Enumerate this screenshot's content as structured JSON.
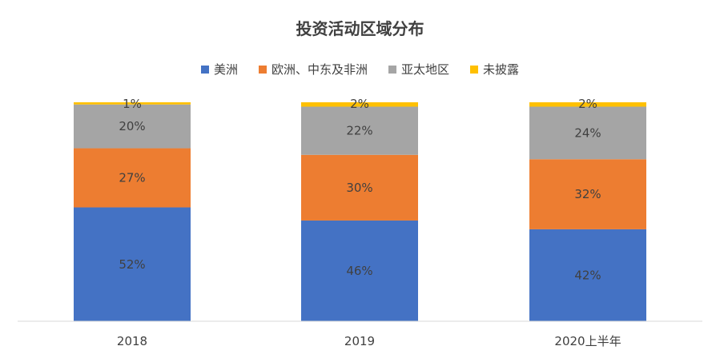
{
  "chart_data": {
    "type": "bar",
    "stacked": true,
    "title": "投资活动区域分布",
    "categories": [
      "2018",
      "2019",
      "2020上半年"
    ],
    "series": [
      {
        "name": "美洲",
        "color": "#4472C4",
        "values": [
          52,
          46,
          42
        ],
        "labels": [
          "52%",
          "46%",
          "42%"
        ]
      },
      {
        "name": "欧洲、中东及非洲",
        "color": "#ED7D31",
        "values": [
          27,
          30,
          32
        ],
        "labels": [
          "27%",
          "30%",
          "32%"
        ]
      },
      {
        "name": "亚太地区",
        "color": "#A5A5A5",
        "values": [
          20,
          22,
          24
        ],
        "labels": [
          "20%",
          "22%",
          "24%"
        ]
      },
      {
        "name": "未披露",
        "color": "#FFC000",
        "values": [
          1,
          2,
          2
        ],
        "labels": [
          "1%",
          "2%",
          "2%"
        ]
      }
    ],
    "ylim": [
      0,
      100
    ],
    "legend_position": "top",
    "grid": false,
    "xlabel": "",
    "ylabel": ""
  }
}
